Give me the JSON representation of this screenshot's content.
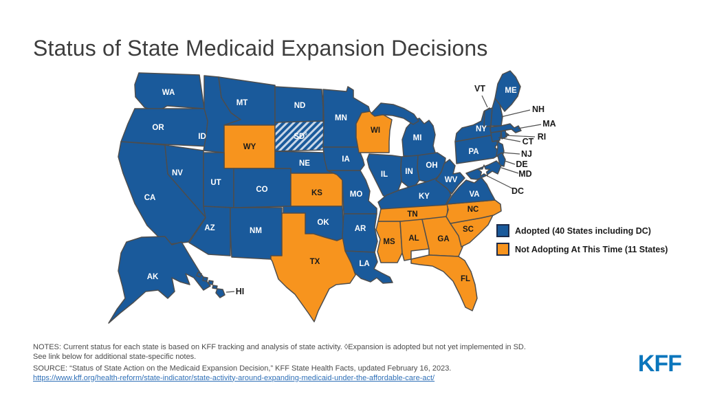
{
  "title": "Status of State Medicaid Expansion Decisions",
  "colors": {
    "adopted": "#1A5A9B",
    "not_adopting": "#F7941E",
    "hatch_light": "#C9D7E8",
    "state_border": "#4D4D4D",
    "label_on_blue": "#FFFFFF",
    "label_on_orange": "#1A1A1A",
    "callout_label": "#1A1A1A",
    "callout_line": "#4D4D4D",
    "link": "#2E6FB7",
    "logo": "#0B76BC"
  },
  "legend": {
    "items": [
      {
        "key": "adopted",
        "label": "Adopted (40 States including DC)"
      },
      {
        "key": "not_adopting",
        "label": "Not Adopting At This Time (11 States)"
      }
    ]
  },
  "map": {
    "sd_marker": "◊",
    "states": [
      {
        "abbr": "WA",
        "status": "adopted"
      },
      {
        "abbr": "OR",
        "status": "adopted"
      },
      {
        "abbr": "CA",
        "status": "adopted"
      },
      {
        "abbr": "NV",
        "status": "adopted"
      },
      {
        "abbr": "ID",
        "status": "adopted"
      },
      {
        "abbr": "MT",
        "status": "adopted"
      },
      {
        "abbr": "WY",
        "status": "not_adopting"
      },
      {
        "abbr": "UT",
        "status": "adopted"
      },
      {
        "abbr": "CO",
        "status": "adopted"
      },
      {
        "abbr": "AZ",
        "status": "adopted"
      },
      {
        "abbr": "NM",
        "status": "adopted"
      },
      {
        "abbr": "ND",
        "status": "adopted"
      },
      {
        "abbr": "SD",
        "status": "adopted_not_implemented"
      },
      {
        "abbr": "NE",
        "status": "adopted"
      },
      {
        "abbr": "KS",
        "status": "not_adopting"
      },
      {
        "abbr": "OK",
        "status": "adopted"
      },
      {
        "abbr": "TX",
        "status": "not_adopting"
      },
      {
        "abbr": "MN",
        "status": "adopted"
      },
      {
        "abbr": "IA",
        "status": "adopted"
      },
      {
        "abbr": "MO",
        "status": "adopted"
      },
      {
        "abbr": "AR",
        "status": "adopted"
      },
      {
        "abbr": "LA",
        "status": "adopted"
      },
      {
        "abbr": "WI",
        "status": "not_adopting"
      },
      {
        "abbr": "MI",
        "status": "adopted"
      },
      {
        "abbr": "IL",
        "status": "adopted"
      },
      {
        "abbr": "IN",
        "status": "adopted"
      },
      {
        "abbr": "OH",
        "status": "adopted"
      },
      {
        "abbr": "KY",
        "status": "adopted"
      },
      {
        "abbr": "TN",
        "status": "not_adopting"
      },
      {
        "abbr": "MS",
        "status": "not_adopting"
      },
      {
        "abbr": "AL",
        "status": "not_adopting"
      },
      {
        "abbr": "GA",
        "status": "not_adopting"
      },
      {
        "abbr": "FL",
        "status": "not_adopting"
      },
      {
        "abbr": "SC",
        "status": "not_adopting"
      },
      {
        "abbr": "NC",
        "status": "not_adopting"
      },
      {
        "abbr": "VA",
        "status": "adopted"
      },
      {
        "abbr": "WV",
        "status": "adopted"
      },
      {
        "abbr": "PA",
        "status": "adopted"
      },
      {
        "abbr": "NY",
        "status": "adopted"
      },
      {
        "abbr": "NJ",
        "status": "adopted"
      },
      {
        "abbr": "VT",
        "status": "adopted"
      },
      {
        "abbr": "NH",
        "status": "adopted"
      },
      {
        "abbr": "ME",
        "status": "adopted"
      },
      {
        "abbr": "MA",
        "status": "adopted"
      },
      {
        "abbr": "CT",
        "status": "adopted"
      },
      {
        "abbr": "RI",
        "status": "adopted"
      },
      {
        "abbr": "DE",
        "status": "adopted"
      },
      {
        "abbr": "MD",
        "status": "adopted"
      },
      {
        "abbr": "DC",
        "status": "adopted"
      },
      {
        "abbr": "AK",
        "status": "adopted"
      },
      {
        "abbr": "HI",
        "status": "adopted"
      }
    ]
  },
  "notes": {
    "line1": "NOTES: Current status for each state is based on KFF tracking and analysis of state activity. ◊Expansion is adopted but not yet implemented in SD.",
    "line2": "See link below for additional state-specific notes.",
    "source": "SOURCE: “Status of State Action on the Medicaid Expansion Decision,” KFF State Health Facts, updated February 16, 2023.",
    "link": "https://www.kff.org/health-reform/state-indicator/state-activity-around-expanding-medicaid-under-the-affordable-care-act/"
  },
  "logo": "KFF",
  "chart_data": {
    "type": "choropleth",
    "title": "Status of State Medicaid Expansion Decisions",
    "legend": [
      "Adopted (40 States including DC)",
      "Not Adopting At This Time (11 States)"
    ],
    "adopted_count": 40,
    "not_adopting_count": 11,
    "adopted": [
      "AK",
      "AZ",
      "AR",
      "CA",
      "CO",
      "CT",
      "DE",
      "DC",
      "HI",
      "ID",
      "IL",
      "IN",
      "IA",
      "KY",
      "LA",
      "ME",
      "MD",
      "MA",
      "MI",
      "MN",
      "MO",
      "MT",
      "NE",
      "NV",
      "NH",
      "NJ",
      "NM",
      "NY",
      "ND",
      "OH",
      "OK",
      "OR",
      "PA",
      "RI",
      "SD",
      "UT",
      "VT",
      "VA",
      "WA",
      "WV"
    ],
    "not_adopting": [
      "AL",
      "FL",
      "GA",
      "KS",
      "MS",
      "NC",
      "SC",
      "TN",
      "TX",
      "WI",
      "WY"
    ],
    "footnote_markers": {
      "SD": "Expansion is adopted but not yet implemented in SD (shown hatched)"
    }
  }
}
